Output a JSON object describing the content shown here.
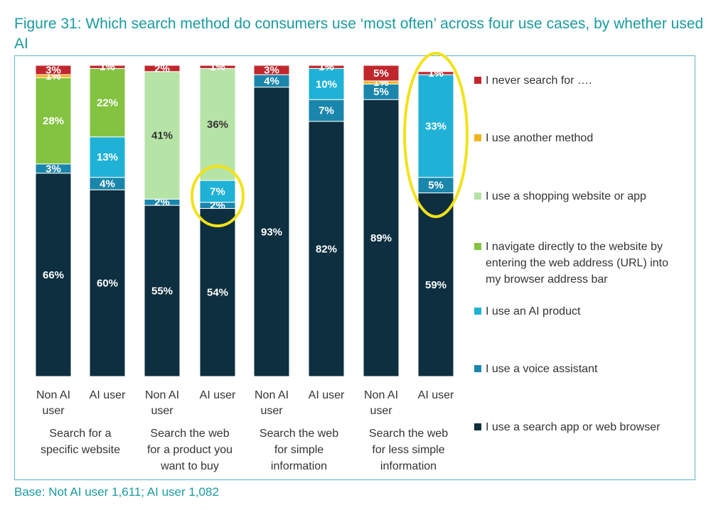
{
  "title": "Figure 31: Which search method do consumers use ‘most often’ across four use cases, by whether used AI",
  "base_note": "Base: Not AI user 1,611; AI user 1,082",
  "chart_data": {
    "type": "bar",
    "stacked": true,
    "title": "Figure 31: Which search method do consumers use ‘most often’ across four use cases, by whether used AI",
    "xlabel": "",
    "ylabel": "",
    "ylim": [
      0,
      100
    ],
    "grid": false,
    "legend_position": "right",
    "categories": [
      [
        "Non AI",
        "user"
      ],
      [
        "AI user"
      ],
      [
        "Non AI",
        "user"
      ],
      [
        "AI user"
      ],
      [
        "Non AI",
        "user"
      ],
      [
        "AI user"
      ],
      [
        "Non AI",
        "user"
      ],
      [
        "AI user"
      ]
    ],
    "groups": [
      {
        "label": [
          "Search for a",
          "specific website"
        ]
      },
      {
        "label": [
          "Search the web",
          "for a product you",
          "want to buy"
        ]
      },
      {
        "label": [
          "Search the web",
          "for simple",
          "information"
        ]
      },
      {
        "label": [
          "Search the web",
          "for less simple",
          "information"
        ]
      }
    ],
    "series": [
      {
        "name": "I use a search app or web browser",
        "color": "#0d2f3f",
        "label_color": "#ffffff",
        "values": [
          66,
          60,
          55,
          54,
          93,
          82,
          89,
          59
        ]
      },
      {
        "name": "I use a voice assistant",
        "color": "#1a86ac",
        "label_color": "#ffffff",
        "values": [
          3,
          4,
          2,
          2,
          4,
          7,
          5,
          5
        ]
      },
      {
        "name": "I use an AI product",
        "color": "#1fb2d6",
        "label_color": "#ffffff",
        "values": [
          0,
          13,
          0,
          7,
          0,
          10,
          0,
          33
        ]
      },
      {
        "name": "I navigate directly to the website by entering the web address (URL) into my browser address bar",
        "legend_lines": [
          "I navigate directly to the website by",
          "entering the web address (URL) into",
          "my browser address bar"
        ],
        "color": "#84c341",
        "label_color": "#ffffff",
        "values": [
          28,
          22,
          0,
          0,
          0,
          0,
          0,
          0
        ]
      },
      {
        "name": "I use a shopping website or app",
        "color": "#b6e3a6",
        "label_color": "#333333",
        "values": [
          0,
          0,
          41,
          36,
          0,
          0,
          0,
          0
        ]
      },
      {
        "name": "I use another method",
        "color": "#f0b41c",
        "label_color": "#ffffff",
        "values": [
          1,
          0,
          0,
          0,
          0,
          0,
          1,
          0
        ]
      },
      {
        "name": "I never search for ….",
        "color": "#c0272d",
        "label_color": "#ffffff",
        "values": [
          3,
          1,
          2,
          1,
          3,
          1,
          5,
          1
        ]
      }
    ],
    "highlighted_bars": [
      3,
      7
    ]
  }
}
